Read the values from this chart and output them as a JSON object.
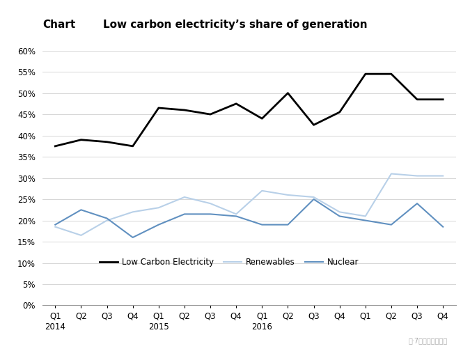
{
  "title_label": "Chart",
  "title_text": "Low carbon electricity’s share of generation",
  "x_tick_labels": [
    "Q1\n2014",
    "Q2",
    "Q3",
    "Q4",
    "Q1\n2015",
    "Q2",
    "Q3",
    "Q4",
    "Q1\n2016",
    "Q2",
    "Q3",
    "Q4",
    "Q1",
    "Q2",
    "Q3",
    "Q4"
  ],
  "low_carbon": [
    37.5,
    39.0,
    38.5,
    37.5,
    46.5,
    46.0,
    45.0,
    47.5,
    44.0,
    50.0,
    42.5,
    45.5,
    54.5,
    54.5,
    48.5,
    48.5
  ],
  "renewables": [
    18.5,
    16.5,
    20.0,
    22.0,
    23.0,
    25.5,
    24.0,
    21.5,
    27.0,
    26.0,
    25.5,
    22.0,
    21.0,
    31.0,
    30.5,
    30.5
  ],
  "nuclear": [
    19.0,
    22.5,
    20.5,
    16.0,
    19.0,
    21.5,
    21.5,
    21.0,
    19.0,
    19.0,
    25.0,
    21.0,
    20.0,
    19.0,
    24.0,
    18.5
  ],
  "low_carbon_color": "#000000",
  "renewables_color": "#b8d0e8",
  "nuclear_color": "#6090c0",
  "ylim": [
    0,
    62
  ],
  "yticks": [
    0,
    5,
    10,
    15,
    20,
    25,
    30,
    35,
    40,
    45,
    50,
    55,
    60
  ],
  "background_color": "#ffffff",
  "grid_color": "#d0d0d0",
  "watermark": "二·7国际能源小数据"
}
